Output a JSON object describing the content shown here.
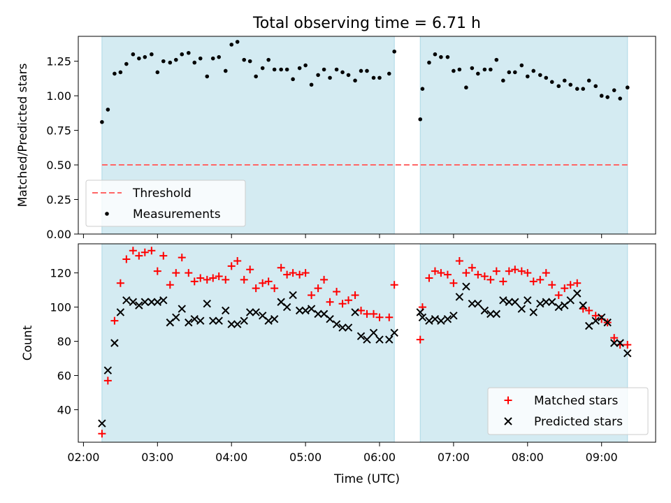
{
  "title": "Total observing time = 6.71 h",
  "colors": {
    "band": "#add8e6",
    "threshold": "#ff6666",
    "matched": "#ff0000",
    "predicted": "#000000"
  },
  "chart_data": [
    {
      "type": "scatter",
      "ylabel": "Matched/Predicted stars",
      "xlabel": "",
      "x_unit": "hours UTC",
      "xlim": [
        1.93,
        9.73
      ],
      "ylim": [
        0.0,
        1.43
      ],
      "yticks": [
        0.0,
        0.25,
        0.5,
        0.75,
        1.0,
        1.25
      ],
      "ytick_labels": [
        "0.00",
        "0.25",
        "0.50",
        "0.75",
        "1.00",
        "1.25"
      ],
      "shaded_intervals": [
        [
          2.25,
          6.2
        ],
        [
          6.55,
          9.35
        ]
      ],
      "threshold": {
        "name": "Threshold",
        "value": 0.5
      },
      "legend": [
        "Threshold",
        "Measurements"
      ],
      "legend_position": "lower left",
      "series": [
        {
          "name": "Measurements",
          "x": [
            2.25,
            2.33,
            2.42,
            2.5,
            2.58,
            2.67,
            2.75,
            2.83,
            2.92,
            3.0,
            3.08,
            3.17,
            3.25,
            3.33,
            3.42,
            3.5,
            3.58,
            3.67,
            3.75,
            3.83,
            3.92,
            4.0,
            4.08,
            4.17,
            4.25,
            4.33,
            4.42,
            4.5,
            4.58,
            4.67,
            4.75,
            4.83,
            4.92,
            5.0,
            5.08,
            5.17,
            5.25,
            5.33,
            5.42,
            5.5,
            5.58,
            5.67,
            5.75,
            5.83,
            5.92,
            6.0,
            6.13,
            6.2,
            6.55,
            6.58,
            6.67,
            6.75,
            6.83,
            6.92,
            7.0,
            7.08,
            7.17,
            7.25,
            7.33,
            7.42,
            7.5,
            7.58,
            7.67,
            7.75,
            7.83,
            7.92,
            8.0,
            8.08,
            8.17,
            8.25,
            8.33,
            8.42,
            8.5,
            8.58,
            8.67,
            8.75,
            8.83,
            8.92,
            9.0,
            9.08,
            9.17,
            9.25,
            9.35
          ],
          "y": [
            0.81,
            0.9,
            1.16,
            1.17,
            1.23,
            1.3,
            1.27,
            1.28,
            1.3,
            1.17,
            1.25,
            1.24,
            1.26,
            1.3,
            1.31,
            1.24,
            1.27,
            1.14,
            1.27,
            1.28,
            1.18,
            1.37,
            1.39,
            1.26,
            1.25,
            1.14,
            1.2,
            1.26,
            1.19,
            1.19,
            1.19,
            1.12,
            1.2,
            1.22,
            1.08,
            1.15,
            1.19,
            1.13,
            1.19,
            1.17,
            1.15,
            1.11,
            1.18,
            1.18,
            1.13,
            1.13,
            1.16,
            1.32,
            0.83,
            1.05,
            1.24,
            1.3,
            1.28,
            1.28,
            1.18,
            1.19,
            1.06,
            1.2,
            1.16,
            1.19,
            1.19,
            1.26,
            1.11,
            1.17,
            1.17,
            1.22,
            1.14,
            1.18,
            1.15,
            1.13,
            1.1,
            1.07,
            1.11,
            1.08,
            1.05,
            1.05,
            1.11,
            1.07,
            1.0,
            0.99,
            1.04,
            0.98,
            1.06
          ]
        }
      ]
    },
    {
      "type": "scatter",
      "ylabel": "Count",
      "xlabel": "Time (UTC)",
      "x_unit": "hours UTC",
      "xlim": [
        1.93,
        9.73
      ],
      "ylim": [
        21,
        137
      ],
      "xticks": [
        2,
        3,
        4,
        5,
        6,
        7,
        8,
        9
      ],
      "xtick_labels": [
        "02:00",
        "03:00",
        "04:00",
        "05:00",
        "06:00",
        "07:00",
        "08:00",
        "09:00"
      ],
      "yticks": [
        40,
        60,
        80,
        100,
        120
      ],
      "ytick_labels": [
        "40",
        "60",
        "80",
        "100",
        "120"
      ],
      "shaded_intervals": [
        [
          2.25,
          6.2
        ],
        [
          6.55,
          9.35
        ]
      ],
      "legend": [
        "Matched stars",
        "Predicted stars"
      ],
      "legend_position": "lower right",
      "series": [
        {
          "name": "Matched stars",
          "marker": "plus",
          "x": [
            2.25,
            2.33,
            2.42,
            2.5,
            2.58,
            2.67,
            2.75,
            2.83,
            2.92,
            3.0,
            3.08,
            3.17,
            3.25,
            3.33,
            3.42,
            3.5,
            3.58,
            3.67,
            3.75,
            3.83,
            3.92,
            4.0,
            4.08,
            4.17,
            4.25,
            4.33,
            4.42,
            4.5,
            4.58,
            4.67,
            4.75,
            4.83,
            4.92,
            5.0,
            5.08,
            5.17,
            5.25,
            5.33,
            5.42,
            5.5,
            5.58,
            5.67,
            5.75,
            5.83,
            5.92,
            6.0,
            6.13,
            6.2,
            6.55,
            6.58,
            6.67,
            6.75,
            6.83,
            6.92,
            7.0,
            7.08,
            7.17,
            7.25,
            7.33,
            7.42,
            7.5,
            7.58,
            7.67,
            7.75,
            7.83,
            7.92,
            8.0,
            8.08,
            8.17,
            8.25,
            8.33,
            8.42,
            8.5,
            8.58,
            8.67,
            8.75,
            8.83,
            8.92,
            9.0,
            9.08,
            9.17,
            9.25,
            9.35
          ],
          "y": [
            26,
            57,
            92,
            114,
            128,
            133,
            130,
            132,
            133,
            121,
            130,
            113,
            120,
            129,
            120,
            115,
            117,
            116,
            117,
            118,
            116,
            124,
            127,
            116,
            122,
            111,
            114,
            115,
            111,
            123,
            119,
            120,
            119,
            120,
            107,
            111,
            116,
            103,
            109,
            102,
            104,
            107,
            98,
            96,
            96,
            94,
            94,
            113,
            81,
            100,
            117,
            121,
            120,
            119,
            114,
            127,
            120,
            123,
            119,
            118,
            116,
            121,
            115,
            121,
            122,
            121,
            120,
            115,
            116,
            120,
            113,
            107,
            111,
            113,
            114,
            99,
            98,
            95,
            93,
            91,
            82,
            78,
            78
          ]
        },
        {
          "name": "Predicted stars",
          "marker": "cross",
          "x": [
            2.25,
            2.33,
            2.42,
            2.5,
            2.58,
            2.67,
            2.75,
            2.83,
            2.92,
            3.0,
            3.08,
            3.17,
            3.25,
            3.33,
            3.42,
            3.5,
            3.58,
            3.67,
            3.75,
            3.83,
            3.92,
            4.0,
            4.08,
            4.17,
            4.25,
            4.33,
            4.42,
            4.5,
            4.58,
            4.67,
            4.75,
            4.83,
            4.92,
            5.0,
            5.08,
            5.17,
            5.25,
            5.33,
            5.42,
            5.5,
            5.58,
            5.67,
            5.75,
            5.83,
            5.92,
            6.0,
            6.13,
            6.2,
            6.55,
            6.58,
            6.67,
            6.75,
            6.83,
            6.92,
            7.0,
            7.08,
            7.17,
            7.25,
            7.33,
            7.42,
            7.5,
            7.58,
            7.67,
            7.75,
            7.83,
            7.92,
            8.0,
            8.08,
            8.17,
            8.25,
            8.33,
            8.42,
            8.5,
            8.58,
            8.67,
            8.75,
            8.83,
            8.92,
            9.0,
            9.08,
            9.17,
            9.25,
            9.35
          ],
          "y": [
            32,
            63,
            79,
            97,
            104,
            103,
            101,
            103,
            103,
            103,
            104,
            91,
            94,
            99,
            91,
            93,
            92,
            102,
            92,
            92,
            98,
            90,
            90,
            92,
            97,
            97,
            95,
            92,
            93,
            103,
            100,
            107,
            98,
            98,
            99,
            96,
            96,
            93,
            90,
            88,
            88,
            97,
            83,
            81,
            85,
            81,
            81,
            85,
            97,
            94,
            92,
            93,
            92,
            93,
            95,
            106,
            112,
            102,
            102,
            98,
            96,
            96,
            104,
            103,
            103,
            99,
            104,
            97,
            102,
            103,
            103,
            100,
            101,
            104,
            108,
            101,
            89,
            92,
            94,
            91,
            79,
            79,
            73
          ]
        }
      ]
    }
  ]
}
